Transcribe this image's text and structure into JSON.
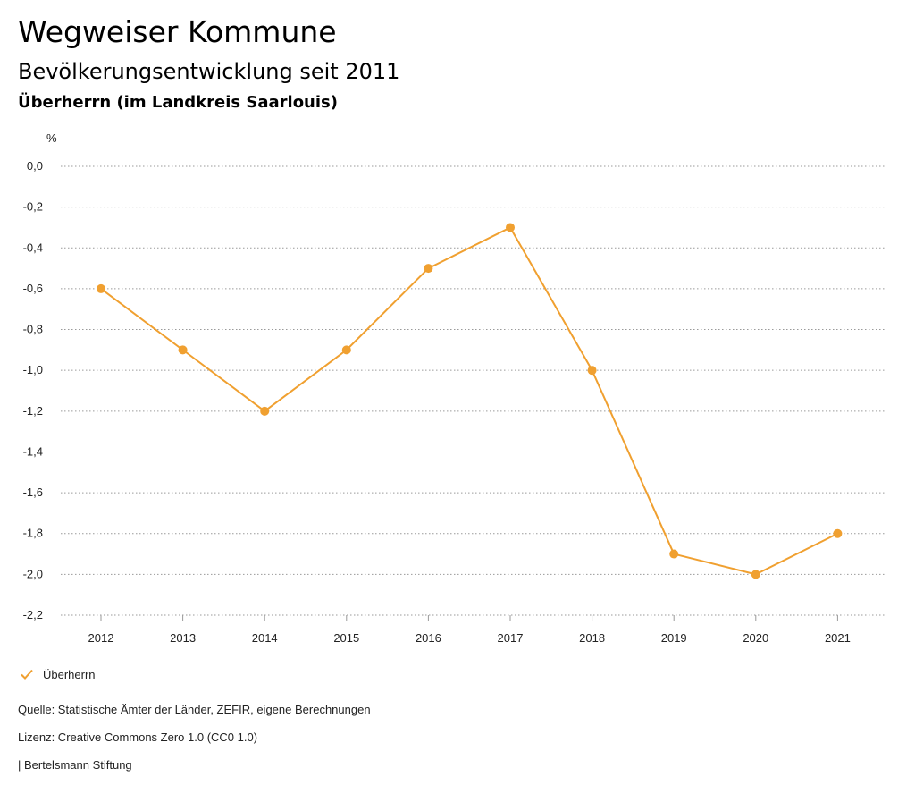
{
  "header": {
    "title": "Wegweiser Kommune",
    "subtitle": "Bevölkerungsentwicklung seit 2011",
    "region": "Überherrn (im Landkreis Saarlouis)"
  },
  "chart_data": {
    "type": "line",
    "title": "Bevölkerungsentwicklung seit 2011",
    "subtitle": "Überherrn (im Landkreis Saarlouis)",
    "ylabel": "%",
    "xlabel": "",
    "ylim": [
      -2.2,
      0.0
    ],
    "yticks": [
      "0,0",
      "-0,2",
      "-0,4",
      "-0,6",
      "-0,8",
      "-1,0",
      "-1,2",
      "-1,4",
      "-1,6",
      "-1,8",
      "-2,0",
      "-2,2"
    ],
    "ytick_values": [
      0.0,
      -0.2,
      -0.4,
      -0.6,
      -0.8,
      -1.0,
      -1.2,
      -1.4,
      -1.6,
      -1.8,
      -2.0,
      -2.2
    ],
    "categories": [
      "2012",
      "2013",
      "2014",
      "2015",
      "2016",
      "2017",
      "2018",
      "2019",
      "2020",
      "2021"
    ],
    "series": [
      {
        "name": "Überherrn",
        "color": "#f0a030",
        "values": [
          -0.6,
          -0.9,
          -1.2,
          -0.9,
          -0.5,
          -0.3,
          -1.0,
          -1.9,
          -2.0,
          -1.8
        ]
      }
    ],
    "grid": true,
    "legend_position": "bottom-left"
  },
  "legend": {
    "label": "Überherrn",
    "icon": "check-icon",
    "color": "#f0a030"
  },
  "footer": {
    "source": "Quelle: Statistische Ämter der Länder, ZEFIR, eigene Berechnungen",
    "license": "Lizenz: Creative Commons Zero 1.0 (CC0 1.0)",
    "publisher": "| Bertelsmann Stiftung"
  }
}
